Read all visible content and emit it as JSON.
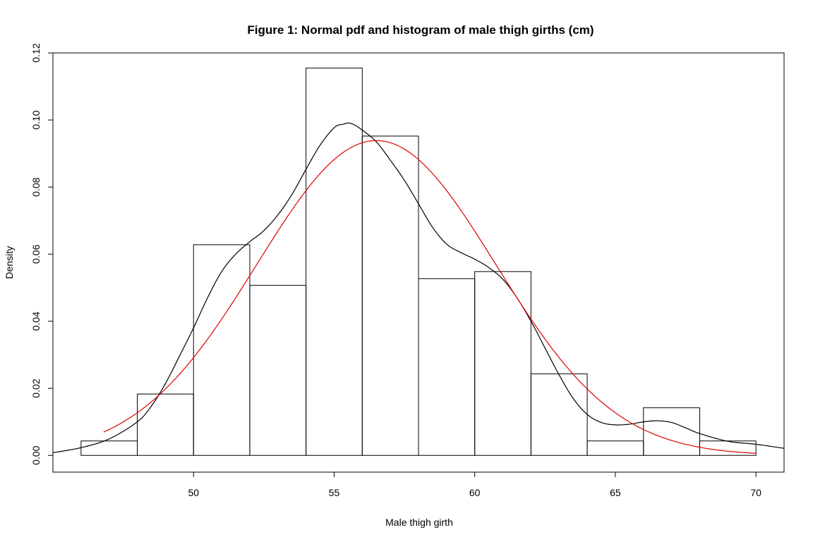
{
  "chart_data": {
    "type": "histogram",
    "title": "Figure 1: Normal pdf and histogram of male thigh girths (cm)",
    "xlabel": "Male thigh girth",
    "ylabel": "Density",
    "xlim": [
      45,
      71
    ],
    "ylim": [
      -0.005,
      0.12
    ],
    "x_ticks": [
      50,
      55,
      60,
      65,
      70
    ],
    "x_tick_labels": [
      "50",
      "55",
      "60",
      "65",
      "70"
    ],
    "y_ticks": [
      0.0,
      0.02,
      0.04,
      0.06,
      0.08,
      0.1,
      0.12
    ],
    "y_tick_labels": [
      "0.00",
      "0.02",
      "0.04",
      "0.06",
      "0.08",
      "0.10",
      "0.12"
    ],
    "grid": false,
    "histogram": {
      "breaks": [
        46,
        48,
        50,
        52,
        54,
        56,
        58,
        60,
        62,
        64,
        66,
        68,
        70
      ],
      "density": [
        0.0043,
        0.0183,
        0.0628,
        0.0507,
        0.1155,
        0.0952,
        0.0527,
        0.0548,
        0.0243,
        0.0043,
        0.0142,
        0.0043
      ]
    },
    "series": [
      {
        "kind": "density-curve",
        "color": "#000000",
        "x": [
          45,
          46,
          47,
          48,
          48.5,
          49,
          49.5,
          50,
          50.5,
          51,
          51.5,
          52,
          52.5,
          53,
          53.5,
          54,
          54.5,
          55,
          55.3,
          55.6,
          56,
          56.5,
          57,
          57.5,
          58,
          58.5,
          59,
          59.5,
          60,
          60.5,
          61,
          61.5,
          62,
          62.5,
          63,
          63.5,
          64,
          64.5,
          65,
          65.5,
          66,
          66.5,
          67,
          67.5,
          68,
          69,
          70,
          71
        ],
        "y": [
          0.0008,
          0.0023,
          0.0049,
          0.01,
          0.0147,
          0.0214,
          0.0296,
          0.038,
          0.047,
          0.0548,
          0.06,
          0.0637,
          0.067,
          0.0717,
          0.0778,
          0.0853,
          0.0925,
          0.0977,
          0.0987,
          0.099,
          0.097,
          0.0935,
          0.088,
          0.082,
          0.075,
          0.068,
          0.063,
          0.0605,
          0.0585,
          0.056,
          0.0525,
          0.047,
          0.04,
          0.032,
          0.024,
          0.017,
          0.0122,
          0.0098,
          0.0091,
          0.0093,
          0.01,
          0.0103,
          0.0098,
          0.0082,
          0.0065,
          0.0042,
          0.0033,
          0.0021
        ]
      },
      {
        "kind": "normal-pdf",
        "color": "#e00000",
        "mean": 56.5,
        "sd": 4.25,
        "x_range": [
          46.8,
          70
        ]
      }
    ]
  }
}
